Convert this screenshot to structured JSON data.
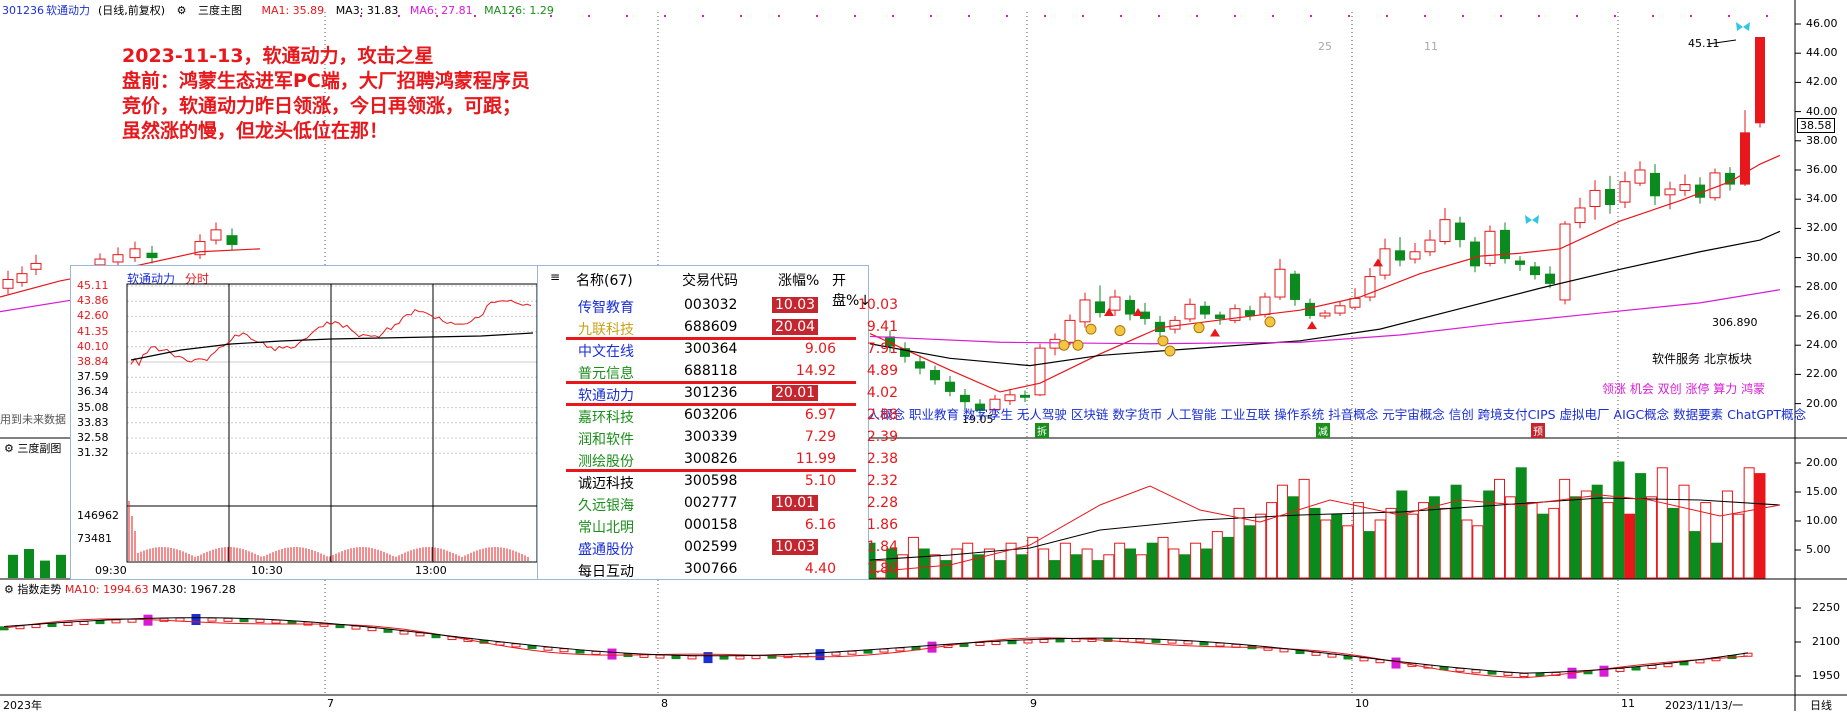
{
  "header": {
    "stock_code": "301236",
    "stock_name": "软通动力",
    "period": "(日线,前复权)",
    "indicator_menu": "三度主图",
    "ma": [
      {
        "label": "MA1: 35.89",
        "color": "#e8171b"
      },
      {
        "label": "MA3: 31.83",
        "color": "#000000"
      },
      {
        "label": "MA6: 27.81",
        "color": "#d81bd8"
      },
      {
        "label": "MA126: 1.29",
        "color": "#1a8f1a"
      }
    ]
  },
  "annotation": {
    "lines": [
      "2023-11-13，软通动力，攻击之星",
      "盘前：鸿蒙生态进军PC端，大厂招聘鸿蒙程序员",
      "竞价，软通动力昨日领涨，今日再领涨，可跟；",
      "虽然涨的慢，但龙头低位在那！"
    ]
  },
  "price_axis": {
    "ticks": [
      "46.00",
      "44.00",
      "42.00",
      "40.00",
      "38.00",
      "36.00",
      "34.00",
      "32.00",
      "30.00",
      "28.00",
      "26.00",
      "24.00",
      "22.00",
      "20.00"
    ],
    "current_price": "38.58",
    "high_label": "45.11",
    "right_label": "306.890",
    "low_label": "19.05"
  },
  "main_chart": {
    "left_note": "用到未来数据",
    "marker_25": "25",
    "marker_11": "11",
    "sector_tags": "器人概念 职业教育 数字孪生 无人驾驶 区块链 数字货币 人工智能 工业互联 操作系统 抖音概念 元宇宙概念 信创 跨境支付CIPS 虚拟电厂 AIGC概念 数据要素 ChatGPT概念",
    "board_info": "软件服务   北京板块",
    "tags_line": "领涨 机会 双创 涨停 算力 鸿蒙",
    "flag_chars": [
      "拆",
      "减",
      "预"
    ]
  },
  "volume_panel": {
    "title": "三度副图",
    "ticks": [
      "20.00",
      "15.00",
      "10.00",
      "5.00"
    ],
    "values": [
      6,
      3,
      5,
      4,
      7,
      5,
      4,
      3,
      5,
      6,
      4,
      5,
      3,
      6,
      4,
      7,
      5,
      3,
      6,
      4,
      5,
      3,
      4,
      6,
      5,
      4,
      6,
      7,
      5,
      4,
      6,
      5,
      8,
      7,
      12,
      9,
      11,
      13,
      16,
      14,
      17,
      12,
      10,
      11,
      9,
      13,
      8,
      10,
      12,
      15,
      11,
      13,
      14,
      12,
      16,
      10,
      9,
      15,
      17,
      14,
      19,
      13,
      11,
      12,
      17,
      14,
      15,
      16,
      13,
      20,
      11,
      18,
      14,
      19,
      12,
      16,
      8,
      13,
      6,
      15,
      11,
      19,
      18
    ],
    "ups": [
      0,
      1,
      0,
      1,
      1,
      0,
      1,
      0,
      1,
      1,
      0,
      1,
      0,
      1,
      0,
      1,
      1,
      0,
      1,
      0,
      1,
      0,
      1,
      1,
      0,
      1,
      0,
      1,
      1,
      0,
      1,
      0,
      1,
      0,
      1,
      0,
      1,
      1,
      1,
      0,
      1,
      0,
      1,
      0,
      1,
      1,
      0,
      1,
      1,
      0,
      1,
      1,
      0,
      1,
      0,
      1,
      1,
      0,
      1,
      1,
      0,
      1,
      0,
      1,
      1,
      0,
      1,
      0,
      1,
      0,
      1,
      0,
      1,
      1,
      0,
      1,
      0,
      1,
      0,
      1,
      1,
      1,
      1
    ]
  },
  "index_panel": {
    "title": "指数走势",
    "ma10": "MA10: 1994.63",
    "ma30": "MA30: 1967.28",
    "ticks": [
      "2250",
      "2100",
      "1950"
    ]
  },
  "x_axis": {
    "labels": [
      "2023年",
      "7",
      "8",
      "9",
      "10",
      "11",
      "2023/11/13/一"
    ],
    "right_label": "日线"
  },
  "intraday_popup": {
    "name": "软通动力",
    "tab": "分时",
    "price_ticks": [
      "45.11",
      "43.86",
      "42.60",
      "41.35",
      "40.10",
      "38.84",
      "37.59",
      "36.34",
      "35.08",
      "33.83",
      "32.58",
      "31.32"
    ],
    "vol_ticks": [
      "146962",
      "73481"
    ],
    "time_labels": [
      "09:30",
      "10:30",
      "13:00"
    ]
  },
  "stock_table": {
    "menu_icon": "≡",
    "columns": [
      "名称(67)",
      "交易代码",
      "涨幅%",
      "开盘%↓"
    ],
    "rows": [
      {
        "name": "传智教育",
        "code": "003032",
        "chg": "10.03",
        "open": "10.03",
        "name_color": "#1a2fd6",
        "chg_box": true,
        "underline": false
      },
      {
        "name": "九联科技",
        "code": "688609",
        "chg": "20.04",
        "open": "9.41",
        "name_color": "#c9a21a",
        "chg_box": true,
        "underline": true
      },
      {
        "name": "中文在线",
        "code": "300364",
        "chg": "9.06",
        "open": "7.91",
        "name_color": "#1a2fd6",
        "chg_box": false,
        "underline": false
      },
      {
        "name": "普元信息",
        "code": "688118",
        "chg": "14.92",
        "open": "4.89",
        "name_color": "#1a8f1a",
        "chg_box": false,
        "underline": true
      },
      {
        "name": "软通动力",
        "code": "301236",
        "chg": "20.01",
        "open": "4.02",
        "name_color": "#1a2fd6",
        "chg_box": true,
        "underline": true
      },
      {
        "name": "嘉环科技",
        "code": "603206",
        "chg": "6.97",
        "open": "2.88",
        "name_color": "#1a8f1a",
        "chg_box": false,
        "underline": false
      },
      {
        "name": "润和软件",
        "code": "300339",
        "chg": "7.29",
        "open": "2.39",
        "name_color": "#1a8f1a",
        "chg_box": false,
        "underline": false
      },
      {
        "name": "测绘股份",
        "code": "300826",
        "chg": "11.99",
        "open": "2.38",
        "name_color": "#1a8f1a",
        "chg_box": false,
        "underline": true
      },
      {
        "name": "诚迈科技",
        "code": "300598",
        "chg": "5.10",
        "open": "2.32",
        "name_color": "#000000",
        "chg_box": false,
        "underline": false
      },
      {
        "name": "久远银海",
        "code": "002777",
        "chg": "10.01",
        "open": "2.28",
        "name_color": "#1a8f1a",
        "chg_box": true,
        "underline": false
      },
      {
        "name": "常山北明",
        "code": "000158",
        "chg": "6.16",
        "open": "1.86",
        "name_color": "#1a8f1a",
        "chg_box": false,
        "underline": false
      },
      {
        "name": "盛通股份",
        "code": "002599",
        "chg": "10.03",
        "open": "1.84",
        "name_color": "#1a2fd6",
        "chg_box": true,
        "underline": false
      },
      {
        "name": "每日互动",
        "code": "300766",
        "chg": "4.40",
        "open": "1.80",
        "name_color": "#000000",
        "chg_box": false,
        "underline": false
      }
    ]
  },
  "colors": {
    "up": "#e8171b",
    "down": "#0b8a1d",
    "grid": "#9a9a9a",
    "blue_text": "#1a2fd6"
  }
}
